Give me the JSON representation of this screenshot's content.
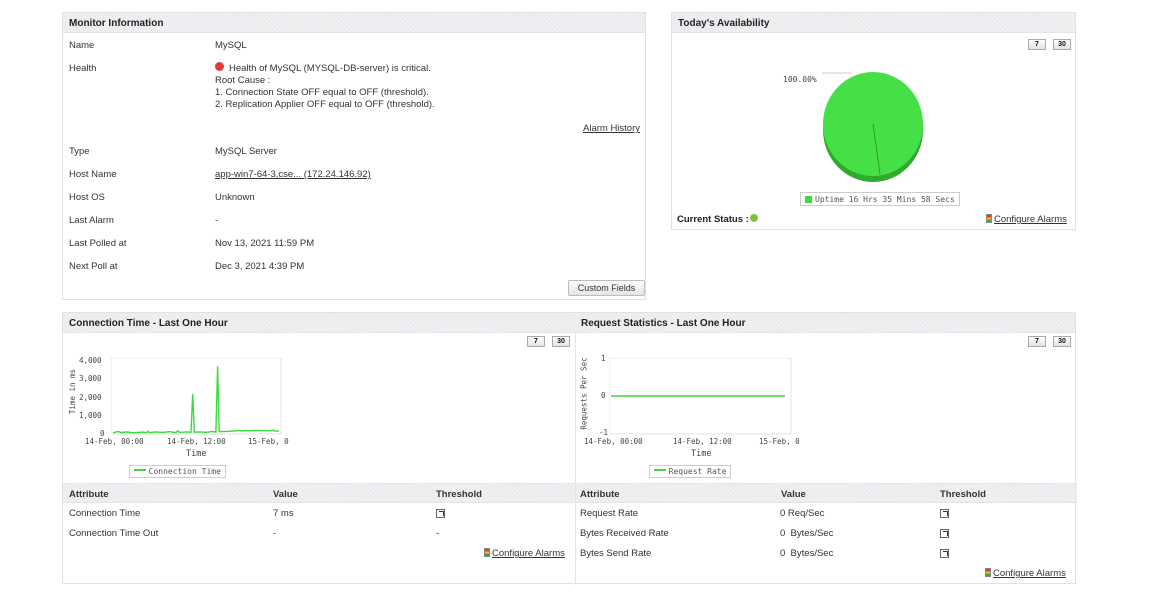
{
  "colors": {
    "accent_green": "#3bdb3b",
    "status_red": "#e53935",
    "status_green": "#4caf50"
  },
  "monitor": {
    "title": "Monitor Information",
    "rows": {
      "name": {
        "label": "Name",
        "value": "MySQL"
      },
      "health": {
        "label": "Health",
        "status_icon": "red-dot-icon",
        "message": "Health of MySQL (MYSQL-DB-server) is critical.",
        "root_cause": "Root Cause :",
        "cause1": "1. Connection State OFF equal to OFF (threshold).",
        "cause2": "2. Replication Applier OFF equal to OFF (threshold)."
      },
      "type": {
        "label": "Type",
        "value": "MySQL Server"
      },
      "host_name": {
        "label": "Host Name",
        "value": "app-win7-64-3.cse... (172.24.146.92)"
      },
      "host_os": {
        "label": "Host OS",
        "value": "Unknown"
      },
      "last_alarm": {
        "label": "Last Alarm",
        "value": "-"
      },
      "last_polled": {
        "label": "Last Polled at",
        "value": "Nov 13, 2021 11:59 PM"
      },
      "next_poll": {
        "label": "Next Poll at",
        "value": "Dec 3, 2021 4:39 PM"
      }
    },
    "alarm_history": "Alarm History",
    "custom_fields": "Custom Fields"
  },
  "availability": {
    "title": "Today's Availability",
    "btn7": "7",
    "btn30": "30",
    "pie_label": "100.00%",
    "legend": "Uptime 16 Hrs 35 Mins 58 Secs",
    "current_status": "Current Status :",
    "configure_alarms": "Configure Alarms"
  },
  "connection": {
    "title": "Connection Time - Last One Hour",
    "btn7": "7",
    "btn30": "30",
    "ylabel": "Time in ms",
    "xlabel": "Time",
    "legend": "Connection Time",
    "table": {
      "headers": [
        "Attribute",
        "Value",
        "Threshold"
      ],
      "rows": [
        {
          "attribute": "Connection Time",
          "value": "7 ms",
          "threshold": "edit-icon"
        },
        {
          "attribute": "Connection Time Out",
          "value": "-",
          "threshold": "-"
        }
      ]
    },
    "configure_alarms": "Configure Alarms"
  },
  "requests": {
    "title": "Request Statistics - Last One Hour",
    "btn7": "7",
    "btn30": "30",
    "ylabel": "Requests Per Sec",
    "xlabel": "Time",
    "legend": "Request Rate",
    "table": {
      "headers": [
        "Attribute",
        "Value",
        "Threshold"
      ],
      "rows": [
        {
          "attribute": "Request Rate",
          "value": "0 Req/Sec",
          "threshold": "edit-icon"
        },
        {
          "attribute": "Bytes Received Rate",
          "value": "0  Bytes/Sec",
          "threshold": "edit-icon"
        },
        {
          "attribute": "Bytes Send Rate",
          "value": "0  Bytes/Sec",
          "threshold": "edit-icon"
        }
      ]
    },
    "configure_alarms": "Configure Alarms"
  },
  "chart_data": [
    {
      "type": "pie",
      "title": "",
      "categories": [
        "Uptime 16 Hrs 35 Mins 58 Secs"
      ],
      "values": [
        100.0
      ],
      "labels": [
        "100.00%"
      ],
      "colors": [
        "#3bdb3b"
      ]
    },
    {
      "type": "line",
      "title": "",
      "xlabel": "Time",
      "ylabel": "Time in ms",
      "yticks": [
        "4,000",
        "3,000",
        "2,000",
        "1,000",
        "0"
      ],
      "xticks": [
        "14-Feb, 00:00",
        "14-Feb, 12:00",
        "15-Feb, 0"
      ],
      "ylim": [
        0,
        4000
      ],
      "series": [
        {
          "name": "Connection Time",
          "x": [
            0,
            3,
            5,
            8,
            12,
            18,
            20,
            21,
            22,
            26,
            30,
            34,
            38,
            39,
            40,
            44,
            47,
            48,
            49,
            52,
            56,
            60,
            62,
            63,
            64,
            70,
            74,
            76,
            78,
            80,
            82,
            84,
            90,
            95,
            96,
            97,
            100
          ],
          "y": [
            10,
            80,
            20,
            60,
            10,
            50,
            15,
            90,
            20,
            60,
            30,
            70,
            20,
            120,
            30,
            60,
            40,
            2100,
            50,
            60,
            40,
            80,
            60,
            3600,
            70,
            90,
            120,
            140,
            110,
            130,
            120,
            140,
            130,
            120,
            160,
            120,
            100
          ]
        }
      ]
    },
    {
      "type": "line",
      "title": "",
      "xlabel": "Time",
      "ylabel": "Requests Per Sec",
      "yticks": [
        "1",
        "0",
        "-1"
      ],
      "xticks": [
        "14-Feb, 00:00",
        "14-Feb, 12:00",
        "15-Feb, 0"
      ],
      "ylim": [
        -1,
        1
      ],
      "series": [
        {
          "name": "Request Rate",
          "x": [
            0,
            100
          ],
          "y": [
            0,
            0
          ]
        }
      ]
    }
  ]
}
